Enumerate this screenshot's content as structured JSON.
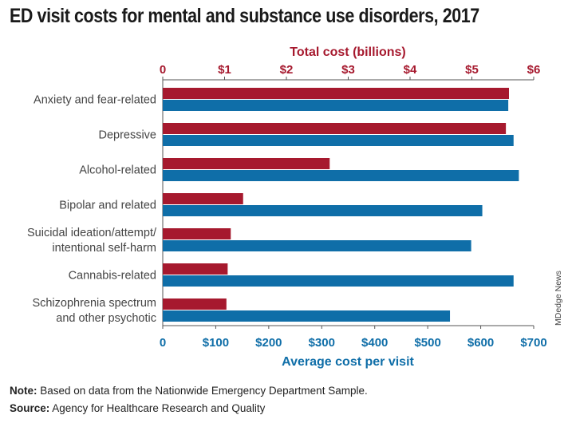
{
  "title": "ED visit costs for mental and substance use disorders, 2017",
  "note_label": "Note:",
  "note_text": " Based on data from the Nationwide Emergency Department Sample.",
  "source_label": "Source:",
  "source_text": " Agency for Healthcare Research and Quality",
  "credit": "MDedge News",
  "colors": {
    "total": "#a6192e",
    "average": "#0f6ea8",
    "axis_line": "#555555",
    "category_text": "#444444"
  },
  "chart_data": {
    "type": "bar",
    "orientation": "horizontal",
    "categories": [
      [
        "Anxiety and fear-related"
      ],
      [
        "Depressive"
      ],
      [
        "Alcohol-related"
      ],
      [
        "Bipolar and related"
      ],
      [
        "Suicidal ideation/attempt/",
        "intentional self-harm"
      ],
      [
        "Cannabis-related"
      ],
      [
        "Schizophrenia spectrum",
        "and other psychotic"
      ]
    ],
    "series": [
      {
        "name": "Total cost (billions)",
        "axis": "top",
        "values": [
          5.6,
          5.55,
          2.7,
          1.3,
          1.1,
          1.05,
          1.03
        ]
      },
      {
        "name": "Average cost per visit",
        "axis": "bottom",
        "values": [
          652,
          662,
          672,
          603,
          582,
          662,
          542
        ]
      }
    ],
    "top_axis": {
      "label": "Total cost (billions)",
      "range": [
        0,
        6
      ],
      "ticks": [
        0,
        1,
        2,
        3,
        4,
        5,
        6
      ],
      "tick_labels": [
        "0",
        "$1",
        "$2",
        "$3",
        "$4",
        "$5",
        "$6"
      ]
    },
    "bottom_axis": {
      "label": "Average cost per visit",
      "range": [
        0,
        700
      ],
      "ticks": [
        0,
        100,
        200,
        300,
        400,
        500,
        600,
        700
      ],
      "tick_labels": [
        "0",
        "$100",
        "$200",
        "$300",
        "$400",
        "$500",
        "$600",
        "$700"
      ]
    },
    "grid": false,
    "legend": "axis-titles"
  }
}
